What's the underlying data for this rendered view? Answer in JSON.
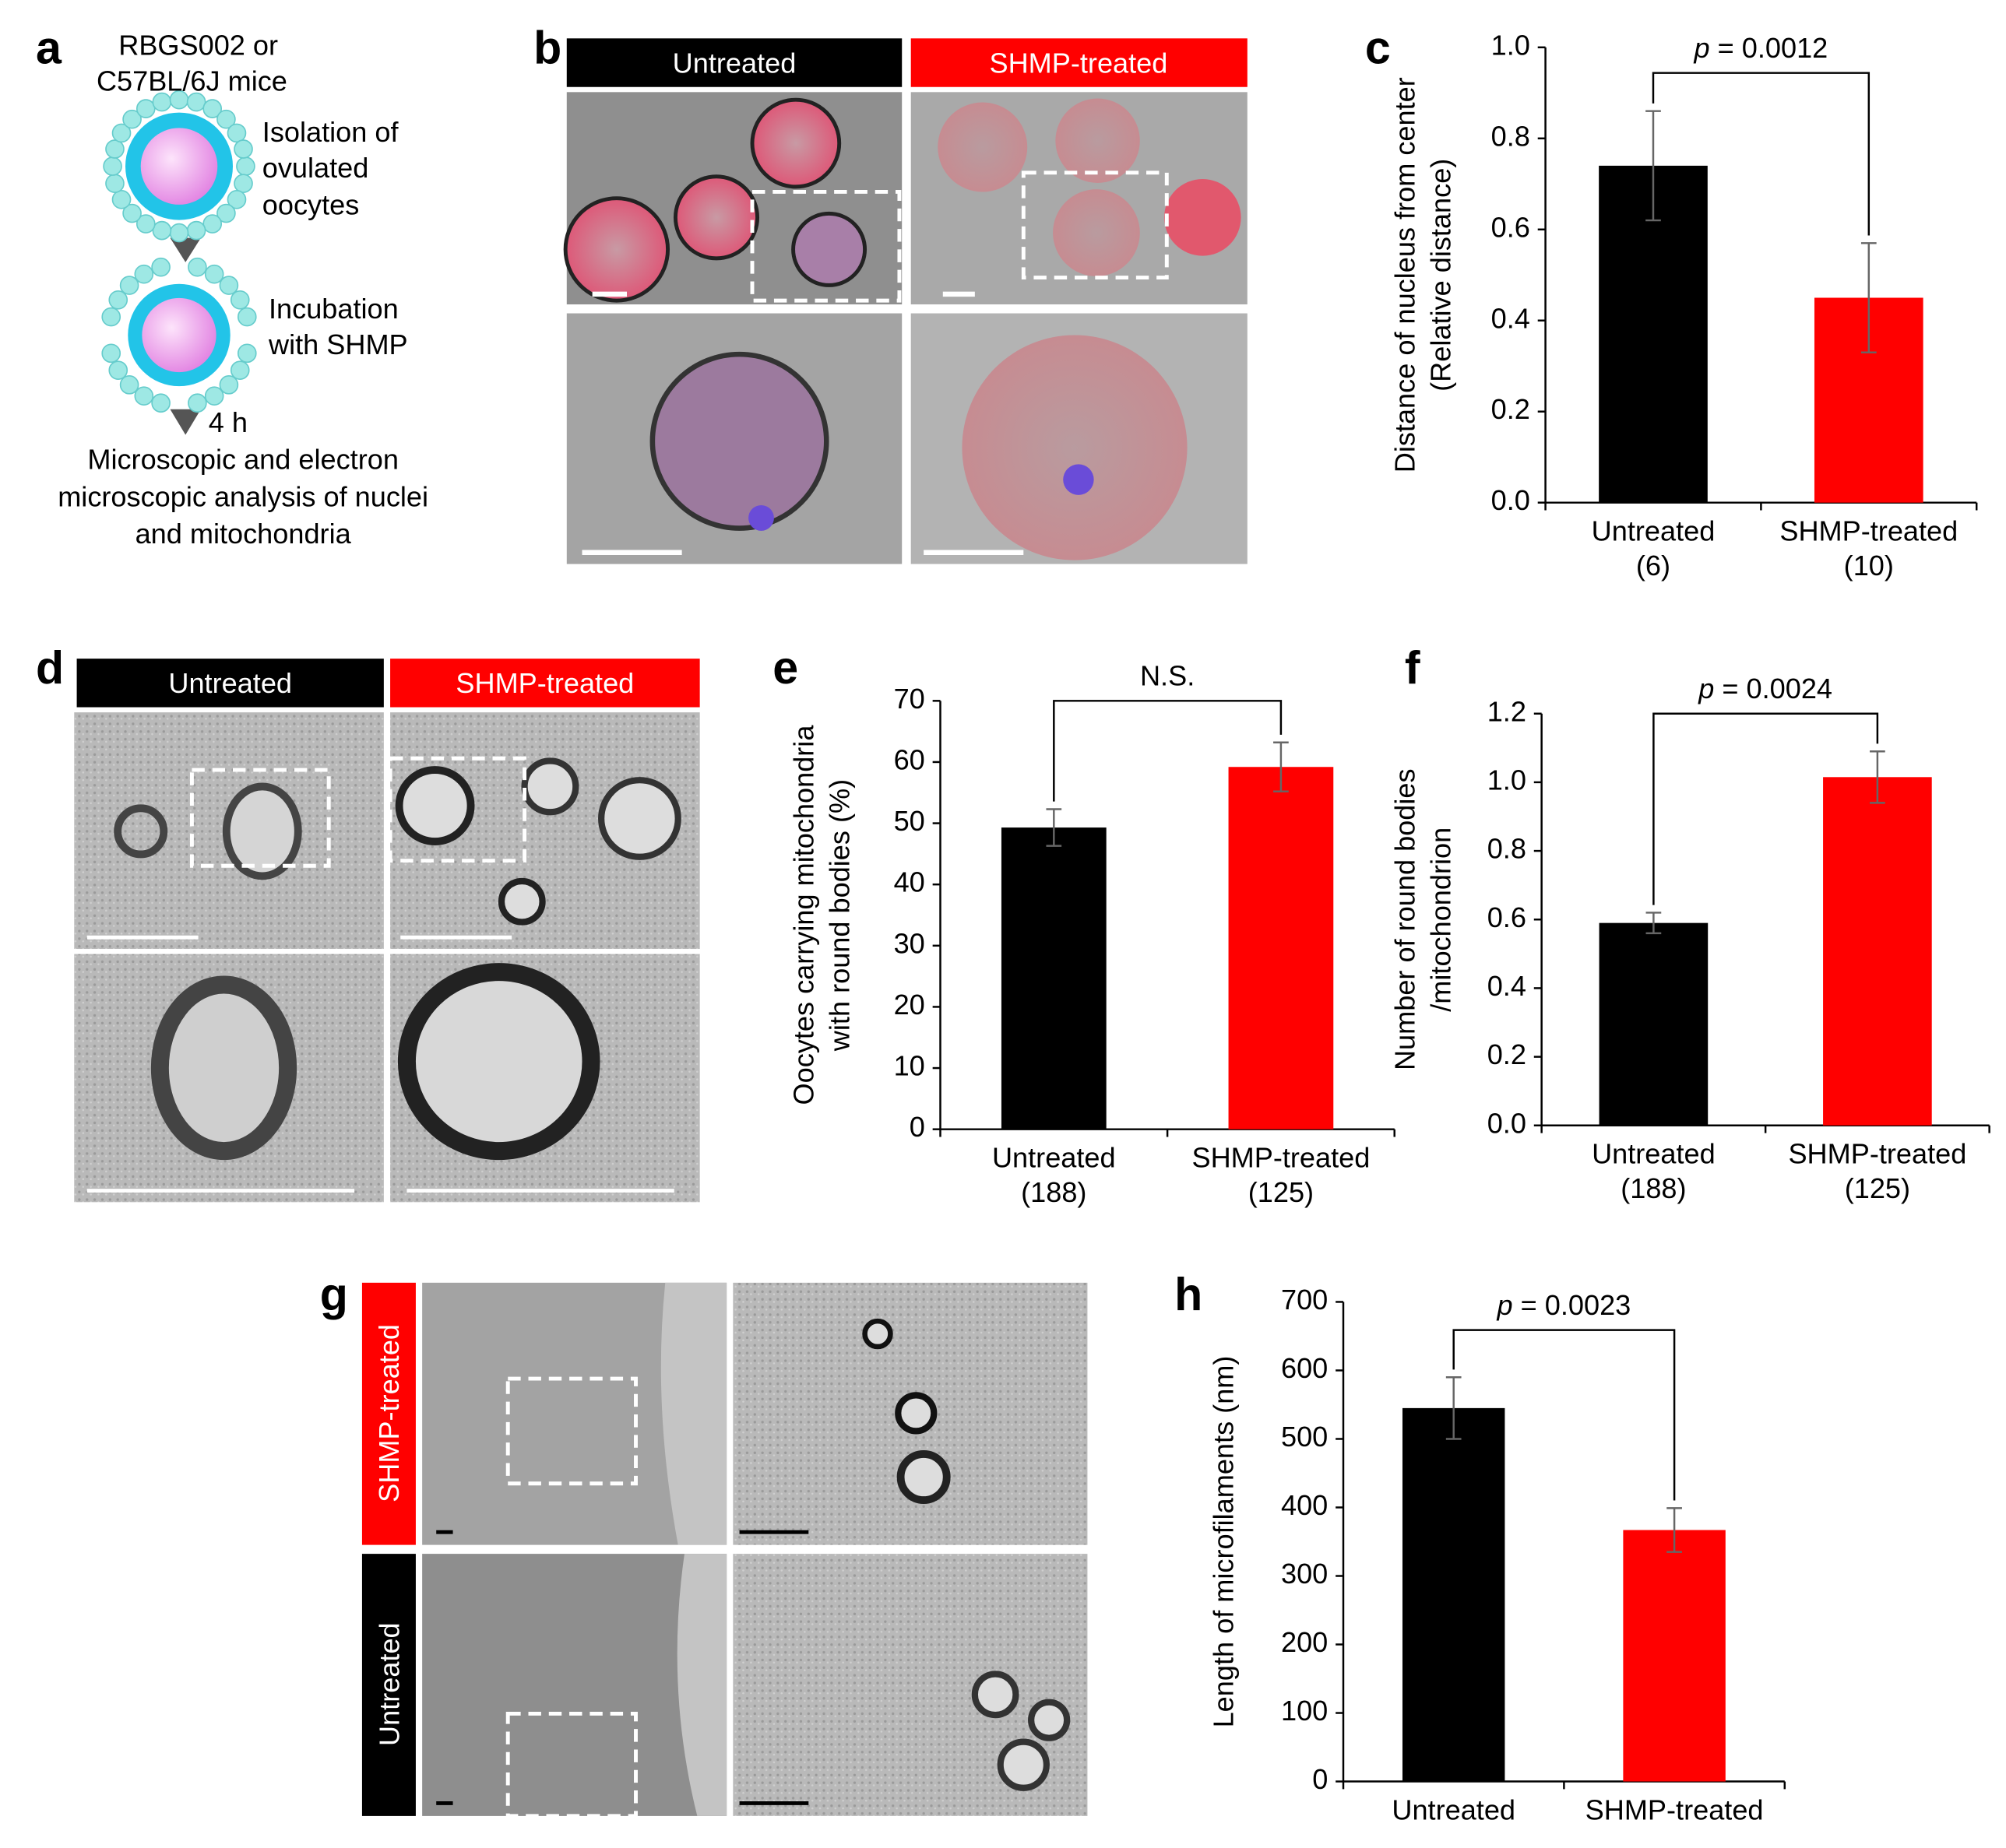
{
  "panel_labels": [
    "a",
    "b",
    "c",
    "d",
    "e",
    "f",
    "g",
    "h"
  ],
  "diagram": {
    "source": [
      "RBGS002 or",
      "C57BL/6J mice"
    ],
    "step1": [
      "Isolation of",
      "ovulated",
      "oocytes"
    ],
    "step2": [
      "Incubation",
      "with SHMP"
    ],
    "duration": "4 h",
    "step3": [
      "Microscopic and electron",
      "microscopic analysis of nuclei",
      "and mitochondria"
    ]
  },
  "images": {
    "b": {
      "headers": [
        "Untreated",
        "SHMP-treated"
      ]
    },
    "d": {
      "headers": [
        "Untreated",
        "SHMP-treated"
      ]
    },
    "g": {
      "row_labels": [
        "SHMP-treated",
        "Untreated"
      ]
    }
  },
  "chart_data": [
    {
      "type": "bar",
      "panel": "c",
      "ylabel": [
        "Distance of nucleus from center",
        "(Relative distance)"
      ],
      "categories": [
        "Untreated",
        "SHMP-treated"
      ],
      "sample_sizes": [
        "(6)",
        "(10)"
      ],
      "values": [
        0.74,
        0.45
      ],
      "errors": [
        0.12,
        0.12
      ],
      "colors": [
        "#000000",
        "#ff0000"
      ],
      "ylim": [
        0,
        1
      ],
      "yticks": [
        {
          "value": 0,
          "label": "0.0"
        },
        0.2,
        0.4,
        0.6,
        0.8,
        {
          "value": 1,
          "label": "1.0"
        }
      ],
      "annotation": {
        "symbol": "p",
        "text": "= 0.0012"
      }
    },
    {
      "type": "bar",
      "panel": "e",
      "ylabel": [
        "Oocytes carrying mitochondria",
        "with round bodies (%)"
      ],
      "categories": [
        "Untreated",
        "SHMP-treated"
      ],
      "sample_sizes": [
        "(188)",
        "(125)"
      ],
      "values": [
        49.3,
        59.2
      ],
      "errors": [
        3,
        4
      ],
      "colors": [
        "#000000",
        "#ff0000"
      ],
      "ylim": [
        0,
        70
      ],
      "yticks": [
        0,
        10,
        20,
        30,
        40,
        50,
        60,
        70
      ],
      "annotation": {
        "text": "N.S."
      }
    },
    {
      "type": "bar",
      "panel": "f",
      "ylabel": [
        "Number of round bodies",
        "/mitochondrion"
      ],
      "categories": [
        "Untreated",
        "SHMP-treated"
      ],
      "sample_sizes": [
        "(188)",
        "(125)"
      ],
      "values": [
        0.59,
        1.015
      ],
      "errors": [
        0.03,
        0.075
      ],
      "colors": [
        "#000000",
        "#ff0000"
      ],
      "ylim": [
        0,
        1.2
      ],
      "yticks": [
        {
          "value": 0,
          "label": "0.0"
        },
        0.2,
        0.4,
        0.6,
        0.8,
        {
          "value": 1,
          "label": "1.0"
        },
        1.2
      ],
      "annotation": {
        "symbol": "p",
        "text": "= 0.0024"
      }
    },
    {
      "type": "bar",
      "panel": "h",
      "ylabel": [
        "Length of microfilaments (nm)"
      ],
      "categories": [
        "Untreated",
        "SHMP-treated"
      ],
      "values": [
        545,
        367
      ],
      "errors": [
        45,
        32
      ],
      "colors": [
        "#000000",
        "#ff0000"
      ],
      "ylim": [
        0,
        700
      ],
      "yticks": [
        0,
        100,
        200,
        300,
        400,
        500,
        600,
        700
      ],
      "annotation": {
        "symbol": "p",
        "text": "= 0.0023"
      }
    }
  ]
}
